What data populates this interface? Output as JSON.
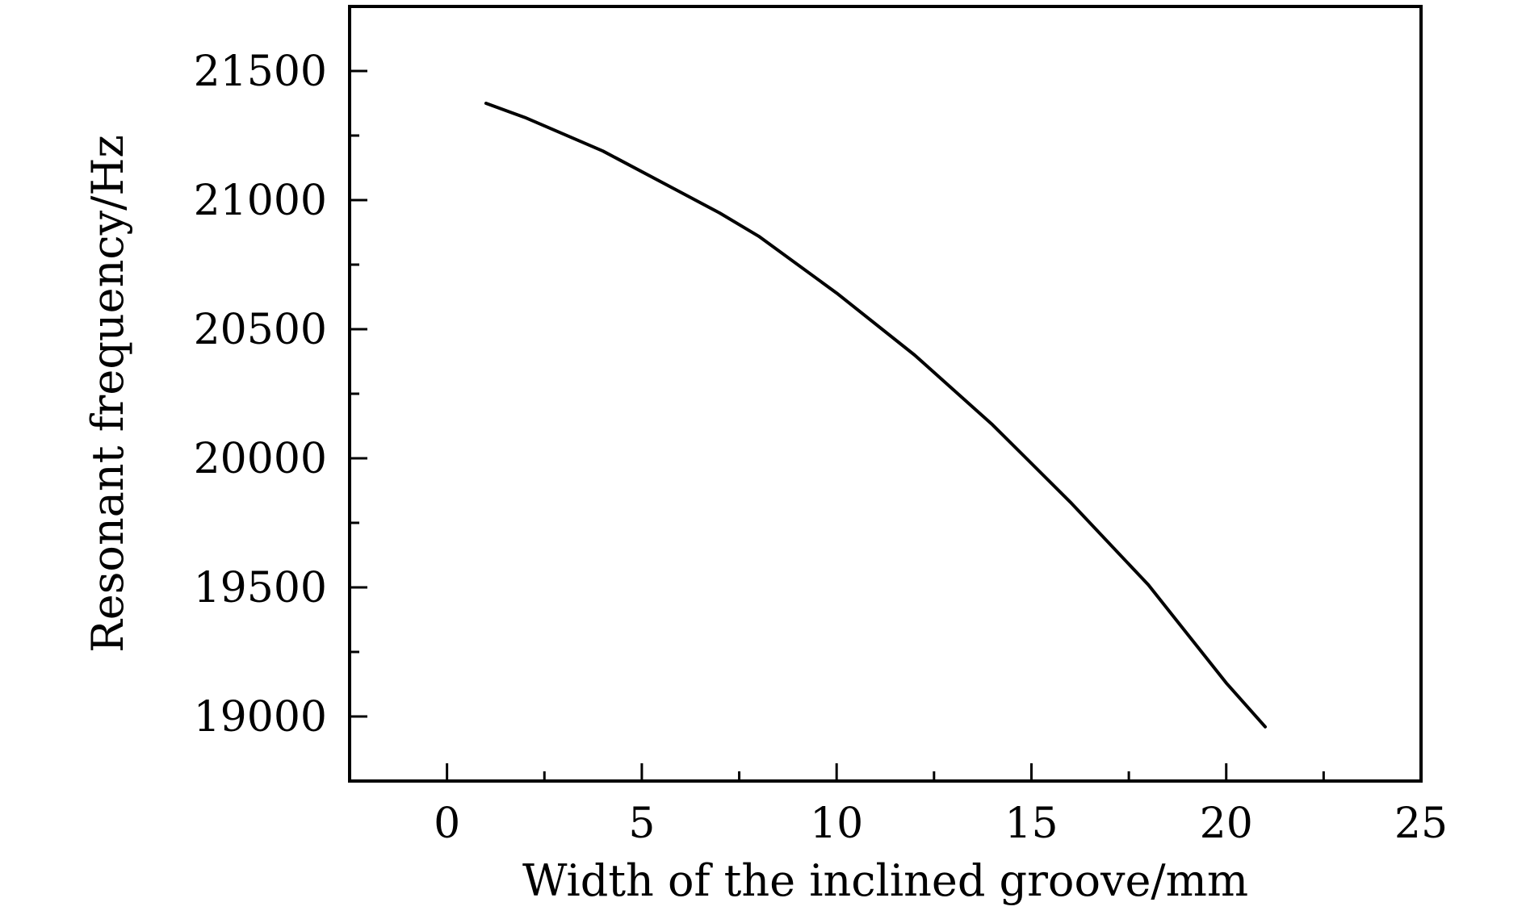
{
  "chart_data": {
    "type": "line",
    "title": "",
    "xlabel": "Width of the inclined groove/mm",
    "ylabel": "Resonant frequency/Hz",
    "xlim": [
      -2.5,
      25
    ],
    "ylim": [
      18750,
      21750
    ],
    "x_ticks": [
      0,
      5,
      10,
      15,
      20,
      25
    ],
    "x_tick_labels": [
      "0",
      "5",
      "10",
      "15",
      "20",
      "25"
    ],
    "x_minor_ticks": [
      2.5,
      7.5,
      12.5,
      17.5,
      22.5
    ],
    "y_ticks": [
      19000,
      19500,
      20000,
      20500,
      21000,
      21500
    ],
    "y_tick_labels": [
      "19000",
      "19500",
      "20000",
      "20500",
      "21000",
      "21500"
    ],
    "y_minor_ticks": [
      19250,
      19750,
      20250,
      20750,
      21250
    ],
    "grid": false,
    "line_color": "#000000",
    "series": [
      {
        "x": [
          1,
          2,
          4,
          6,
          7,
          8,
          10,
          12,
          14,
          16,
          18,
          20,
          21
        ],
        "y": [
          21375,
          21320,
          21190,
          21030,
          20950,
          20860,
          20640,
          20400,
          20130,
          19830,
          19510,
          19130,
          18960
        ]
      }
    ]
  }
}
